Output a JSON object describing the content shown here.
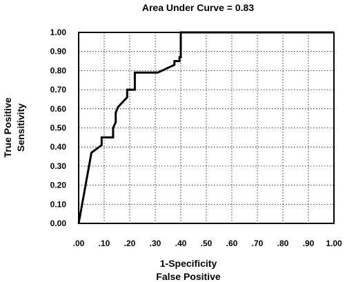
{
  "chart_data": {
    "type": "line",
    "title": "Area Under Curve = 0.83",
    "xlabel_lines": [
      "1-Specificity",
      "False Positive"
    ],
    "ylabel_lines": [
      "True Positive",
      "Sensitivity"
    ],
    "xlim": [
      0,
      1
    ],
    "ylim": [
      0,
      1
    ],
    "grid": true,
    "x_tick_labels": [
      ".00",
      ".10",
      ".20",
      ".30",
      ".40",
      ".50",
      ".60",
      ".70",
      ".80",
      ".90",
      "1.00"
    ],
    "y_tick_labels": [
      "0.00",
      "0.10",
      "0.20",
      "0.30",
      "0.40",
      "0.50",
      "0.60",
      "0.70",
      "0.80",
      "0.90",
      "1.00"
    ],
    "series": [
      {
        "x": [
          0.0,
          0.05,
          0.09,
          0.09,
          0.135,
          0.135,
          0.145,
          0.145,
          0.155,
          0.19,
          0.19,
          0.22,
          0.22,
          0.31,
          0.375,
          0.375,
          0.395,
          0.395,
          0.4,
          0.4,
          1.0
        ],
        "y": [
          0.0,
          0.37,
          0.41,
          0.45,
          0.45,
          0.5,
          0.53,
          0.58,
          0.61,
          0.66,
          0.7,
          0.7,
          0.79,
          0.79,
          0.83,
          0.85,
          0.85,
          0.87,
          0.87,
          1.0,
          1.0
        ]
      }
    ]
  }
}
